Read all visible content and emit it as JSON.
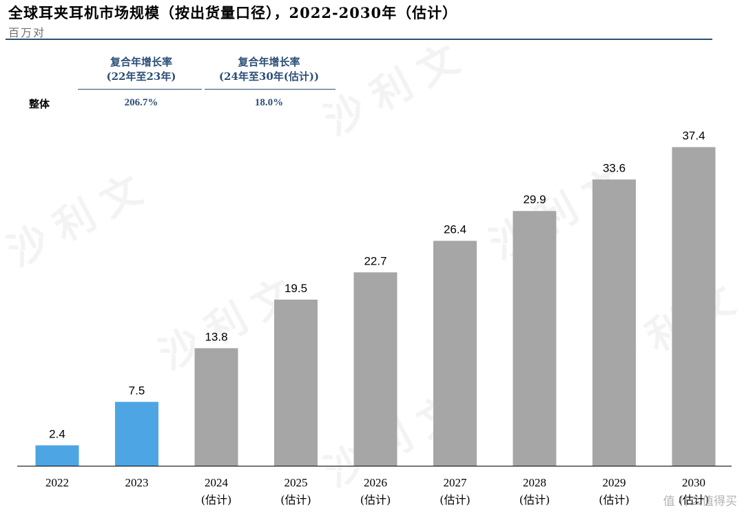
{
  "title": "全球耳夹耳机市场规模（按出货量口径），2022-2030年（估计）",
  "unit": "百万对",
  "cagr": {
    "headers": [
      [
        "复合年增长率",
        "(22年至23年)"
      ],
      [
        "复合年增长率",
        "(24年至30年(估计))"
      ]
    ],
    "row_label": "整体",
    "values": [
      "206.7%",
      "18.0%"
    ]
  },
  "watermark": "沙利文",
  "corner_logo": "值 什么值得买",
  "colors": {
    "actual": "#4da6e3",
    "forecast": "#a6a6a6",
    "accent": "#2b4e78"
  },
  "chart_data": {
    "type": "bar",
    "title": "全球耳夹耳机市场规模（按出货量口径），2022-2030年（估计）",
    "ylabel": "百万对",
    "ylim": [
      0,
      40
    ],
    "categories": [
      "2022",
      "2023",
      "2024",
      "2025",
      "2026",
      "2027",
      "2028",
      "2029",
      "2030"
    ],
    "sublabels": [
      "",
      "",
      "(估计)",
      "(估计)",
      "(估计)",
      "(估计)",
      "(估计)",
      "(估计)",
      "(估计)"
    ],
    "values": [
      2.4,
      7.5,
      13.8,
      19.5,
      22.7,
      26.4,
      29.9,
      33.6,
      37.4
    ],
    "value_labels": [
      "2.4",
      "7.5",
      "13.8",
      "19.5",
      "22.7",
      "26.4",
      "29.9",
      "33.6",
      "37.4"
    ],
    "bar_kind": [
      "actual",
      "actual",
      "forecast",
      "forecast",
      "forecast",
      "forecast",
      "forecast",
      "forecast",
      "forecast"
    ],
    "grid": false,
    "legend": "none"
  }
}
